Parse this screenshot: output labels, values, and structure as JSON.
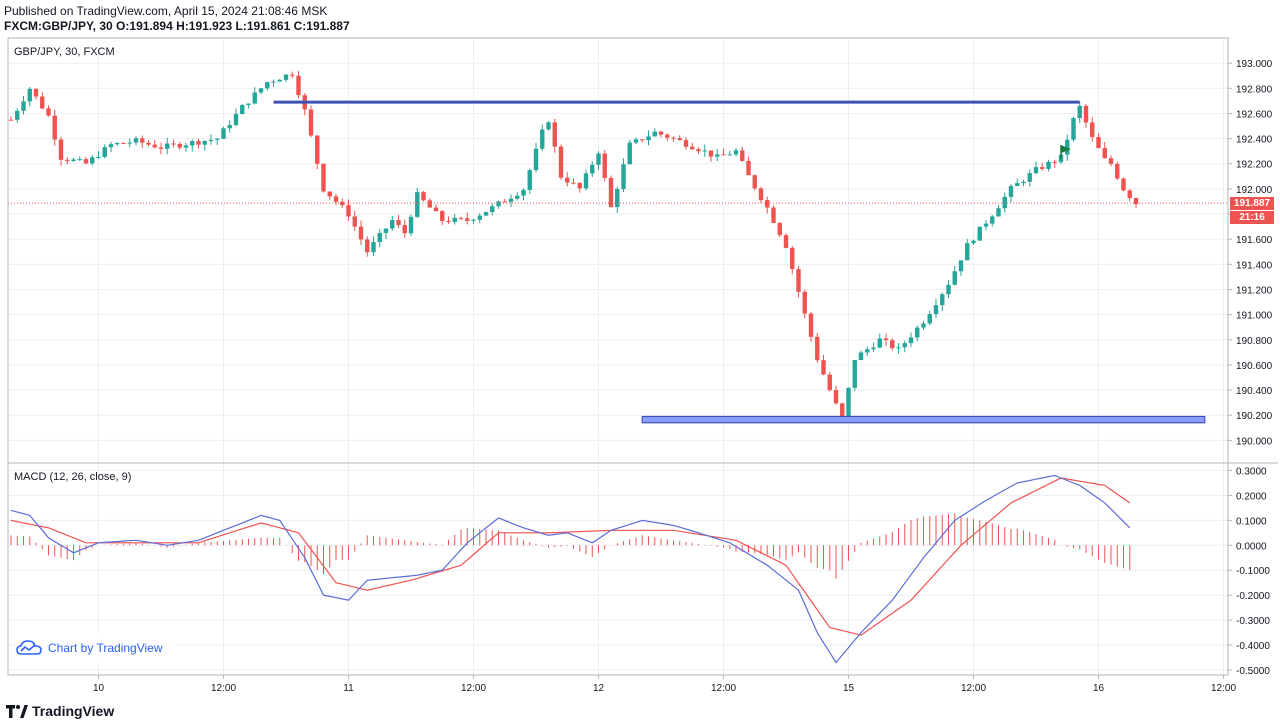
{
  "header": {
    "published": "Published on TradingView.com, April 15, 2024 21:08:46 MSK",
    "symbol_line": "FXCM:GBP/JPY, 30",
    "o_label": "O:",
    "o": "191.894",
    "h_label": "H:",
    "h": "191.923",
    "l_label": "L:",
    "l": "191.861",
    "c_label": "C:",
    "c": "191.887"
  },
  "chart_data": [
    {
      "type": "candlestick",
      "title": "GBP/JPY, 30, FXCM",
      "ylim": [
        189.82,
        193.2
      ],
      "yticks": [
        "193.000",
        "192.800",
        "192.600",
        "192.400",
        "192.200",
        "192.000",
        "191.800",
        "191.600",
        "191.400",
        "191.200",
        "191.000",
        "190.800",
        "190.600",
        "190.400",
        "190.200",
        "190.000"
      ],
      "xticks": [
        "10",
        "12:00",
        "11",
        "12:00",
        "12",
        "12:00",
        "15",
        "12:00",
        "16",
        "12:00"
      ],
      "last_price": "191.887",
      "countdown": "21:16",
      "colors": {
        "up": "#26a69a",
        "down": "#ef5350",
        "line": "#3f51b5",
        "zone": "#3f51b5"
      },
      "resistance_level": 192.69,
      "support_zone": [
        190.14,
        190.19
      ],
      "anchors": [
        [
          0,
          192.55
        ],
        [
          3,
          192.8
        ],
        [
          6,
          192.58
        ],
        [
          8,
          192.25
        ],
        [
          12,
          192.2
        ],
        [
          16,
          192.35
        ],
        [
          20,
          192.38
        ],
        [
          24,
          192.33
        ],
        [
          28,
          192.36
        ],
        [
          33,
          192.4
        ],
        [
          37,
          192.65
        ],
        [
          41,
          192.85
        ],
        [
          45,
          192.92
        ],
        [
          47,
          192.62
        ],
        [
          50,
          192.0
        ],
        [
          54,
          191.8
        ],
        [
          57,
          191.5
        ],
        [
          61,
          191.75
        ],
        [
          63,
          191.65
        ],
        [
          65,
          191.95
        ],
        [
          69,
          191.75
        ],
        [
          73,
          191.75
        ],
        [
          77,
          191.85
        ],
        [
          82,
          192.0
        ],
        [
          85,
          192.45
        ],
        [
          86,
          192.55
        ],
        [
          88,
          192.1
        ],
        [
          91,
          192.0
        ],
        [
          94,
          192.3
        ],
        [
          96,
          191.85
        ],
        [
          99,
          192.35
        ],
        [
          103,
          192.45
        ],
        [
          106,
          192.4
        ],
        [
          110,
          192.32
        ],
        [
          113,
          192.25
        ],
        [
          116,
          192.3
        ],
        [
          118,
          192.1
        ],
        [
          121,
          191.85
        ],
        [
          124,
          191.55
        ],
        [
          127,
          191.0
        ],
        [
          129,
          190.65
        ],
        [
          131,
          190.4
        ],
        [
          133,
          190.16
        ],
        [
          135,
          190.65
        ],
        [
          139,
          190.8
        ],
        [
          142,
          190.72
        ],
        [
          146,
          190.95
        ],
        [
          150,
          191.25
        ],
        [
          153,
          191.55
        ],
        [
          157,
          191.8
        ],
        [
          160,
          192.0
        ],
        [
          164,
          192.15
        ],
        [
          168,
          192.25
        ],
        [
          170,
          192.55
        ],
        [
          171,
          192.65
        ],
        [
          173,
          192.4
        ],
        [
          175,
          192.23
        ],
        [
          176,
          192.2
        ],
        [
          178,
          192.0
        ],
        [
          180,
          191.887
        ]
      ],
      "x_range_bars": [
        0,
        211
      ]
    },
    {
      "type": "line+bar",
      "title": "MACD (12, 26, close, 9)",
      "ylim": [
        -0.52,
        0.33
      ],
      "yticks": [
        "0.3000",
        "0.2000",
        "0.1000",
        "0.0000",
        "-0.1000",
        "-0.2000",
        "-0.3000",
        "-0.4000",
        "-0.5000"
      ],
      "series_colors": {
        "macd": "#5b6cd8",
        "signal": "#ef5350",
        "hist": "#ef5350"
      },
      "macd_anchors": [
        [
          0,
          0.14
        ],
        [
          3,
          0.12
        ],
        [
          6,
          0.03
        ],
        [
          10,
          -0.03
        ],
        [
          14,
          0.01
        ],
        [
          20,
          0.02
        ],
        [
          25,
          0.0
        ],
        [
          30,
          0.02
        ],
        [
          36,
          0.08
        ],
        [
          40,
          0.12
        ],
        [
          43,
          0.1
        ],
        [
          47,
          -0.05
        ],
        [
          50,
          -0.2
        ],
        [
          54,
          -0.22
        ],
        [
          57,
          -0.14
        ],
        [
          61,
          -0.13
        ],
        [
          65,
          -0.12
        ],
        [
          69,
          -0.1
        ],
        [
          73,
          0.01
        ],
        [
          78,
          0.11
        ],
        [
          82,
          0.07
        ],
        [
          86,
          0.04
        ],
        [
          89,
          0.05
        ],
        [
          93,
          0.01
        ],
        [
          96,
          0.06
        ],
        [
          101,
          0.1
        ],
        [
          106,
          0.08
        ],
        [
          110,
          0.05
        ],
        [
          115,
          0.01
        ],
        [
          121,
          -0.08
        ],
        [
          126,
          -0.18
        ],
        [
          129,
          -0.35
        ],
        [
          132,
          -0.47
        ],
        [
          136,
          -0.35
        ],
        [
          141,
          -0.22
        ],
        [
          146,
          -0.05
        ],
        [
          151,
          0.1
        ],
        [
          156,
          0.18
        ],
        [
          161,
          0.25
        ],
        [
          167,
          0.28
        ],
        [
          171,
          0.24
        ],
        [
          175,
          0.17
        ],
        [
          179,
          0.07
        ]
      ],
      "signal_anchors": [
        [
          0,
          0.1
        ],
        [
          6,
          0.07
        ],
        [
          12,
          0.01
        ],
        [
          20,
          0.01
        ],
        [
          30,
          0.01
        ],
        [
          40,
          0.09
        ],
        [
          46,
          0.05
        ],
        [
          52,
          -0.15
        ],
        [
          57,
          -0.18
        ],
        [
          64,
          -0.14
        ],
        [
          72,
          -0.08
        ],
        [
          78,
          0.05
        ],
        [
          86,
          0.05
        ],
        [
          96,
          0.06
        ],
        [
          106,
          0.06
        ],
        [
          116,
          0.02
        ],
        [
          124,
          -0.08
        ],
        [
          131,
          -0.33
        ],
        [
          136,
          -0.36
        ],
        [
          144,
          -0.22
        ],
        [
          152,
          0.0
        ],
        [
          160,
          0.17
        ],
        [
          168,
          0.27
        ],
        [
          175,
          0.24
        ],
        [
          179,
          0.17
        ]
      ]
    }
  ],
  "watermark": {
    "text": "Chart by TradingView"
  },
  "footer": {
    "brand": "TradingView"
  }
}
